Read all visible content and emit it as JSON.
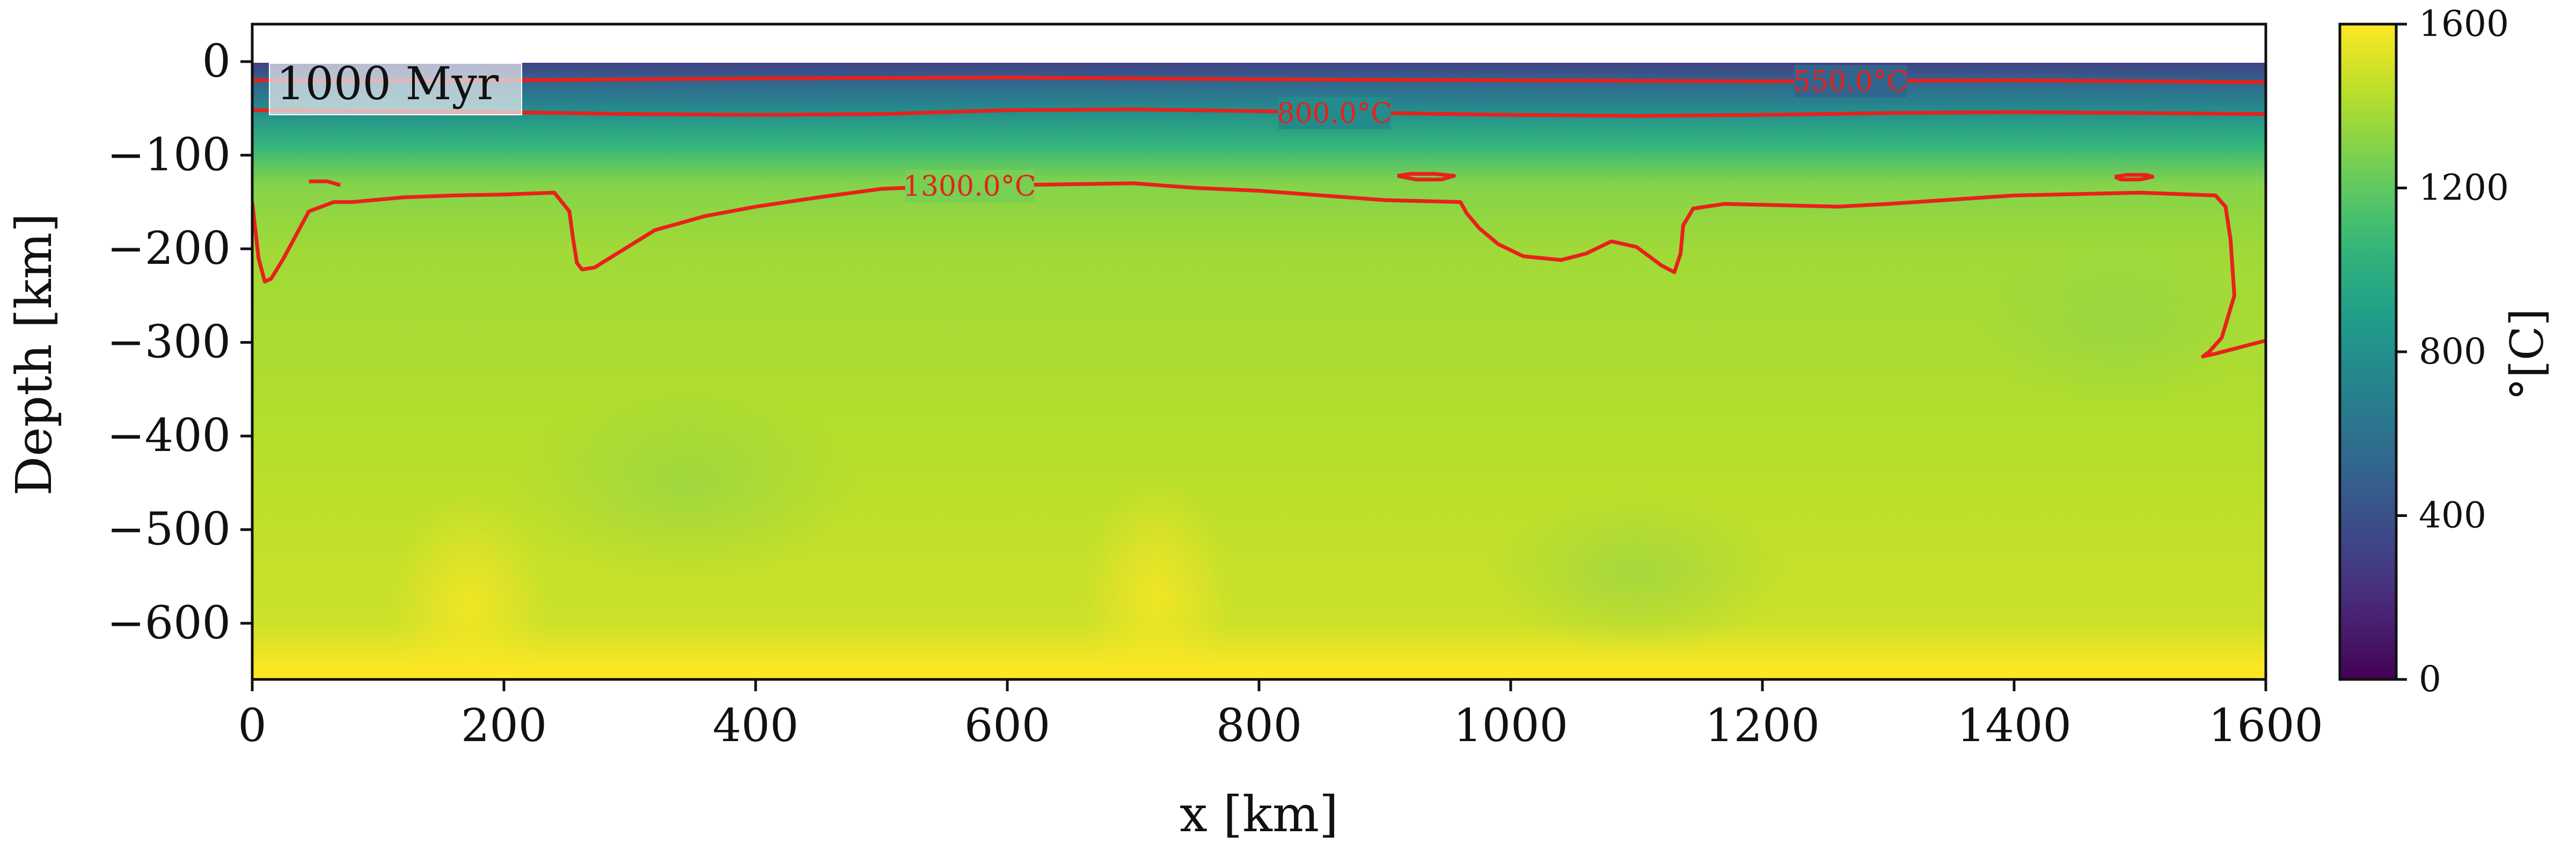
{
  "chart_data": {
    "type": "heatmap",
    "title": "",
    "annotation": "1000 Myr",
    "xlabel": "x [km]",
    "ylabel": "Depth [km]",
    "xlim": [
      0,
      1600
    ],
    "ylim": [
      -660,
      40
    ],
    "xticks": [
      0,
      200,
      400,
      600,
      800,
      1000,
      1200,
      1400,
      1600
    ],
    "xtick_labels": [
      "0",
      "200",
      "400",
      "600",
      "800",
      "1000",
      "1200",
      "1400",
      "1600"
    ],
    "yticks": [
      0,
      -100,
      -200,
      -300,
      -400,
      -500,
      -600
    ],
    "ytick_labels": [
      "0",
      "−100",
      "−200",
      "−300",
      "−400",
      "−500",
      "−600"
    ],
    "grid": false,
    "colormap": "viridis",
    "colorbar": {
      "label": "°[C]",
      "range": [
        0,
        1600
      ],
      "ticks": [
        0,
        400,
        800,
        1200,
        1600
      ],
      "tick_labels": [
        "0",
        "400",
        "800",
        "1200",
        "1600"
      ]
    },
    "line_color": "#e8211b",
    "field_samples": [
      {
        "depth": 0,
        "temperature": 300
      },
      {
        "depth": -25,
        "temperature": 550
      },
      {
        "depth": -55,
        "temperature": 800
      },
      {
        "depth": -90,
        "temperature": 1050
      },
      {
        "depth": -130,
        "temperature": 1300
      },
      {
        "depth": -200,
        "temperature": 1370
      },
      {
        "depth": -400,
        "temperature": 1420
      },
      {
        "depth": -600,
        "temperature": 1480
      },
      {
        "depth": -650,
        "temperature": 1600
      }
    ],
    "contours": [
      {
        "level": 550,
        "label": "550.0°C",
        "label_x": 1270,
        "x": [
          0,
          200,
          400,
          600,
          800,
          1000,
          1200,
          1400,
          1600
        ],
        "y": [
          -20,
          -20,
          -18,
          -17,
          -19,
          -20,
          -21,
          -20,
          -22
        ]
      },
      {
        "level": 800,
        "label": "800.0°C",
        "label_x": 860,
        "x": [
          0,
          100,
          200,
          300,
          400,
          500,
          600,
          700,
          800,
          900,
          1000,
          1100,
          1200,
          1300,
          1400,
          1500,
          1600
        ],
        "y": [
          -52,
          -53,
          -54,
          -56,
          -57,
          -56,
          -52,
          -51,
          -53,
          -55,
          -57,
          -58,
          -57,
          -55,
          -54,
          -55,
          -56
        ]
      },
      {
        "level": 1300,
        "label": "1300.0°C",
        "label_x": 570,
        "x": [
          0,
          5,
          10,
          15,
          25,
          45,
          65,
          80,
          120,
          160,
          200,
          240,
          252,
          255,
          258,
          262,
          272,
          290,
          320,
          360,
          400,
          450,
          500,
          550,
          600,
          650,
          700,
          750,
          800,
          850,
          900,
          960,
          965,
          975,
          990,
          1010,
          1040,
          1060,
          1080,
          1100,
          1120,
          1130,
          1135,
          1137,
          1145,
          1170,
          1200,
          1260,
          1300,
          1400,
          1500,
          1560,
          1568,
          1572,
          1575,
          1565,
          1555,
          1550,
          1560,
          1600
        ],
        "y": [
          -150,
          -210,
          -235,
          -232,
          -210,
          -160,
          -150,
          -150,
          -145,
          -143,
          -142,
          -140,
          -160,
          -190,
          -215,
          -222,
          -220,
          -205,
          -180,
          -165,
          -155,
          -145,
          -136,
          -133,
          -132,
          -131,
          -130,
          -135,
          -138,
          -143,
          -148,
          -150,
          -162,
          -178,
          -195,
          -208,
          -212,
          -205,
          -192,
          -198,
          -218,
          -225,
          -205,
          -175,
          -157,
          -152,
          -153,
          -155,
          -152,
          -143,
          -140,
          -143,
          -155,
          -190,
          -250,
          -295,
          -310,
          -315,
          -312,
          -298
        ]
      },
      {
        "level": 1300,
        "label": "",
        "x": [
          910,
          920,
          940,
          955,
          945,
          925,
          910
        ],
        "y": [
          -122,
          -120,
          -120,
          -122,
          -126,
          -126,
          -122
        ]
      },
      {
        "level": 1300,
        "label": "",
        "x": [
          1480,
          1490,
          1505,
          1510,
          1500,
          1485,
          1480
        ],
        "y": [
          -123,
          -121,
          -121,
          -123,
          -126,
          -126,
          -123
        ]
      },
      {
        "level": 1300,
        "label": "",
        "x": [
          45,
          60,
          70
        ],
        "y": [
          -128,
          -128,
          -132
        ]
      }
    ]
  }
}
